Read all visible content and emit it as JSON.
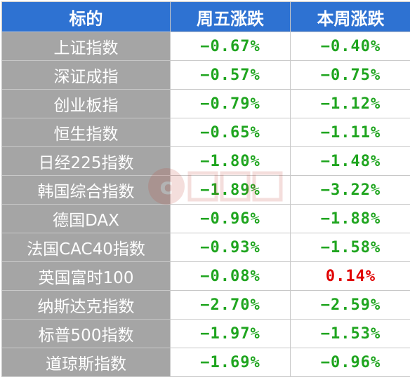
{
  "colors": {
    "header_bg": "#2e72d2",
    "name_bg": "#a5a5a5",
    "down": "#1fa51f",
    "up": "#e00000"
  },
  "headers": [
    "标的",
    "周五涨跌",
    "本周涨跌"
  ],
  "rows": [
    {
      "name": "上证指数",
      "fri": "−0.67%",
      "week": "−0.40%",
      "fri_dir": "down",
      "week_dir": "down"
    },
    {
      "name": "深证成指",
      "fri": "−0.57%",
      "week": "−0.75%",
      "fri_dir": "down",
      "week_dir": "down"
    },
    {
      "name": "创业板指",
      "fri": "−0.79%",
      "week": "−1.12%",
      "fri_dir": "down",
      "week_dir": "down"
    },
    {
      "name": "恒生指数",
      "fri": "−0.65%",
      "week": "−1.11%",
      "fri_dir": "down",
      "week_dir": "down"
    },
    {
      "name": "日经225指数",
      "fri": "−1.80%",
      "week": "−1.48%",
      "fri_dir": "down",
      "week_dir": "down"
    },
    {
      "name": "韩国综合指数",
      "fri": "−1.89%",
      "week": "−3.22%",
      "fri_dir": "down",
      "week_dir": "down"
    },
    {
      "name": "德国DAX",
      "fri": "−0.96%",
      "week": "−1.88%",
      "fri_dir": "down",
      "week_dir": "down"
    },
    {
      "name": "法国CAC40指数",
      "fri": "−0.93%",
      "week": "−1.58%",
      "fri_dir": "down",
      "week_dir": "down"
    },
    {
      "name": "英国富时100",
      "fri": "−0.08%",
      "week": "0.14%",
      "fri_dir": "down",
      "week_dir": "up"
    },
    {
      "name": "纳斯达克指数",
      "fri": "−2.70%",
      "week": "−2.59%",
      "fri_dir": "down",
      "week_dir": "down"
    },
    {
      "name": "标普500指数",
      "fri": "−1.97%",
      "week": "−1.53%",
      "fri_dir": "down",
      "week_dir": "down"
    },
    {
      "name": "道琼斯指数",
      "fri": "−1.69%",
      "week": "−0.96%",
      "fri_dir": "down",
      "week_dir": "down"
    }
  ],
  "watermark": {
    "brand_logo_text": "财联社",
    "logo_icon": "cailianshe-logo-icon"
  }
}
